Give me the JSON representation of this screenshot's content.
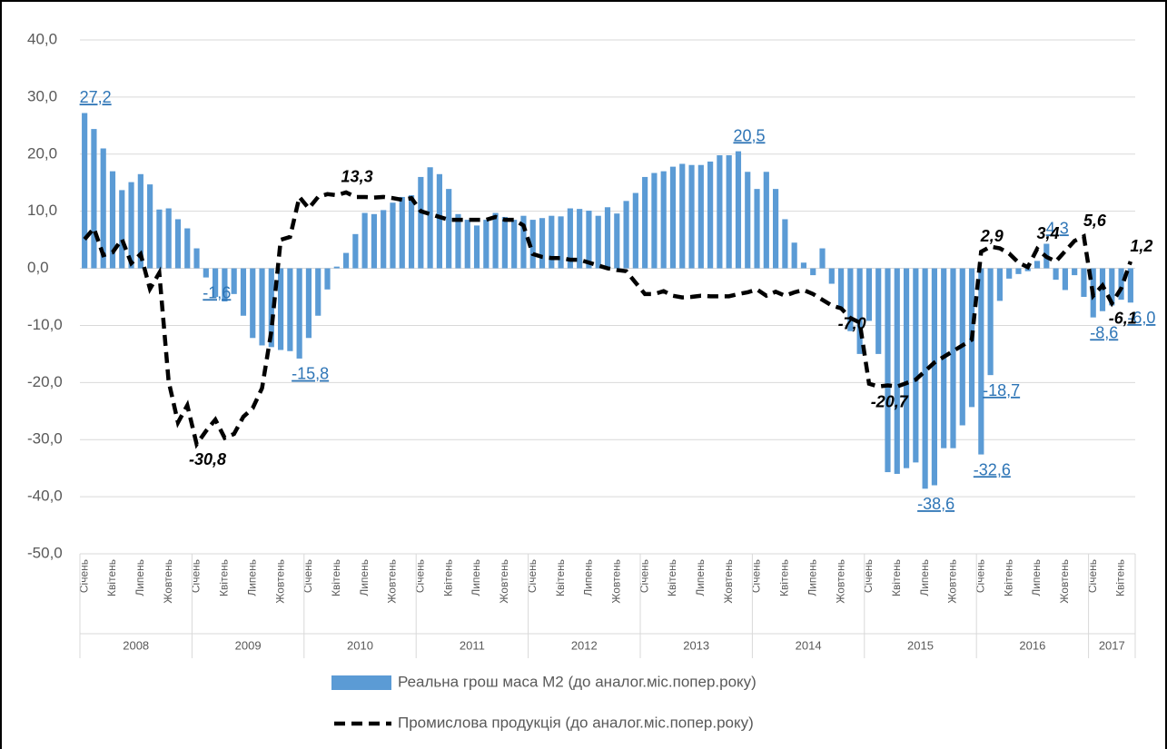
{
  "chart_data": {
    "type": "bar_line",
    "categories": [
      "Січень",
      null,
      null,
      "Квітень",
      null,
      null,
      "Липень",
      null,
      null,
      "Жовтень",
      null,
      null,
      "Січень",
      null,
      null,
      "Квітень",
      null,
      null,
      "Липень",
      null,
      null,
      "Жовтень",
      null,
      null,
      "Січень",
      null,
      null,
      "Квітень",
      null,
      null,
      "Липень",
      null,
      null,
      "Жовтень",
      null,
      null,
      "Січень",
      null,
      null,
      "Квітень",
      null,
      null,
      "Липень",
      null,
      null,
      "Жовтень",
      null,
      null,
      "Січень",
      null,
      null,
      "Квітень",
      null,
      null,
      "Липень",
      null,
      null,
      "Жовтень",
      null,
      null,
      "Січень",
      null,
      null,
      "Квітень",
      null,
      null,
      "Липень",
      null,
      null,
      "Жовтень",
      null,
      null,
      "Січень",
      null,
      null,
      "Квітень",
      null,
      null,
      "Липень",
      null,
      null,
      "Жовтень",
      null,
      null,
      "Січень",
      null,
      null,
      "Квітень",
      null,
      null,
      "Липень",
      null,
      null,
      "Жовтень",
      null,
      null,
      "Січень",
      null,
      null,
      "Квітень",
      null,
      null,
      "Липень",
      null,
      null,
      "Жовтень",
      null,
      null,
      "Січень",
      null,
      null,
      "Квітень",
      null
    ],
    "groups": [
      "2008",
      "2009",
      "2010",
      "2011",
      "2012",
      "2013",
      "2014",
      "2015",
      "2016",
      "2017"
    ],
    "series": [
      {
        "name": "Реальна грош маса М2 (до аналог.міс.попер.року)",
        "type": "bar",
        "color": "#5b9bd5",
        "label_color": "#2e75b6",
        "values": [
          27.2,
          24.4,
          21,
          17,
          13.7,
          15.1,
          16.5,
          14.7,
          10.3,
          10.5,
          8.6,
          7,
          3.5,
          -1.6,
          -5,
          -5.8,
          -4.5,
          -8.3,
          -12.2,
          -13.5,
          -13.8,
          -14.3,
          -14.5,
          -15.8,
          -12.2,
          -8.3,
          -3.7,
          0.3,
          2.7,
          6,
          9.7,
          9.5,
          10.2,
          11.5,
          12.5,
          12.8,
          16,
          17.7,
          16.5,
          13.9,
          9.5,
          8.5,
          7.5,
          8.5,
          9.7,
          9,
          8.5,
          9.2,
          8.5,
          8.8,
          9.2,
          9.1,
          10.5,
          10.4,
          10.1,
          9.2,
          10.7,
          9.6,
          11.8,
          13.2,
          16,
          16.7,
          17,
          17.8,
          18.3,
          18.1,
          18.1,
          18.7,
          19.8,
          19.8,
          20.5,
          16.9,
          13.9,
          16.9,
          13.9,
          8.6,
          4.5,
          1,
          -1.2,
          3.5,
          -2.7,
          -7,
          -11,
          -15,
          -9.2,
          -15,
          -35.7,
          -36,
          -35,
          -34,
          -38.6,
          -38,
          -31.5,
          -31.5,
          -27.5,
          -24.3,
          -32.6,
          -18.7,
          -5.7,
          -1.8,
          -1,
          -0.5,
          1.3,
          4.3,
          -2,
          -3.8,
          -1.2,
          -5,
          -8.6,
          -7.5,
          -6.5,
          -5.5,
          -6
        ],
        "value_labels": [
          "27,2",
          null,
          null,
          null,
          null,
          null,
          null,
          null,
          null,
          null,
          null,
          null,
          null,
          "-1,6",
          null,
          null,
          null,
          null,
          null,
          null,
          null,
          null,
          null,
          "-15,8",
          null,
          null,
          null,
          null,
          null,
          null,
          null,
          null,
          null,
          null,
          null,
          null,
          null,
          null,
          null,
          null,
          null,
          null,
          null,
          null,
          null,
          null,
          null,
          null,
          null,
          null,
          null,
          null,
          null,
          null,
          null,
          null,
          null,
          null,
          null,
          null,
          null,
          null,
          null,
          null,
          null,
          null,
          null,
          null,
          null,
          null,
          "20,5",
          null,
          null,
          null,
          null,
          null,
          null,
          null,
          null,
          null,
          null,
          null,
          null,
          null,
          null,
          null,
          null,
          null,
          null,
          null,
          "-38,6",
          null,
          null,
          null,
          null,
          null,
          "-32,6",
          "-18,7",
          null,
          null,
          null,
          null,
          null,
          "4,3",
          null,
          null,
          null,
          null,
          "-8,6",
          null,
          null,
          null,
          "-6,0"
        ]
      },
      {
        "name": "Промислова продукція (до аналог.міс.попер.року)",
        "type": "line",
        "color": "#000000",
        "dashed": true,
        "values": [
          5.1,
          7,
          2.3,
          2.8,
          5.1,
          0.9,
          2.5,
          -3.6,
          -0.8,
          -19.8,
          -27,
          -24,
          -30.8,
          -28.5,
          -26.5,
          -29.7,
          -29,
          -26,
          -24.5,
          -21,
          -11,
          5,
          5.5,
          12.5,
          10.5,
          12.5,
          13,
          12.8,
          13.3,
          12.5,
          12.5,
          12.4,
          12.5,
          12.3,
          12,
          12.3,
          10,
          9.5,
          9,
          8.5,
          8.5,
          8.5,
          8.5,
          8.5,
          9,
          8.5,
          8.5,
          7.5,
          2.5,
          2,
          1.8,
          1.8,
          1.5,
          1.5,
          1,
          0.5,
          0,
          -0.3,
          -0.5,
          -2.5,
          -4.5,
          -4.5,
          -4,
          -4.8,
          -5.1,
          -5,
          -4.8,
          -4.9,
          -4.9,
          -4.9,
          -4.5,
          -4.2,
          -3.7,
          -4.8,
          -4.1,
          -4.8,
          -4.2,
          -3.8,
          -4.5,
          -5.5,
          -6.5,
          -7,
          -8.7,
          -9.5,
          -20.2,
          -20.7,
          -20.5,
          -20.7,
          -20.1,
          -19.5,
          -18,
          -16.5,
          -15.5,
          -14.5,
          -13.5,
          -12.5,
          2.9,
          3.8,
          3.5,
          2.6,
          1,
          0.2,
          3.4,
          2,
          1.2,
          3,
          4.8,
          5.6,
          -4.8,
          -3,
          -6.1,
          -3.5,
          1.2
        ],
        "value_labels": [
          null,
          null,
          null,
          null,
          null,
          null,
          null,
          null,
          null,
          null,
          null,
          null,
          "-30,8",
          null,
          null,
          null,
          null,
          null,
          null,
          null,
          null,
          null,
          null,
          null,
          null,
          null,
          null,
          null,
          "13,3",
          null,
          null,
          null,
          null,
          null,
          null,
          null,
          null,
          null,
          null,
          null,
          null,
          null,
          null,
          null,
          null,
          null,
          null,
          null,
          null,
          null,
          null,
          null,
          null,
          null,
          null,
          null,
          null,
          null,
          null,
          null,
          null,
          null,
          null,
          null,
          null,
          null,
          null,
          null,
          null,
          null,
          null,
          null,
          null,
          null,
          null,
          null,
          null,
          null,
          null,
          null,
          null,
          "-7,0",
          null,
          null,
          null,
          "-20,7",
          null,
          null,
          null,
          null,
          null,
          null,
          null,
          null,
          null,
          null,
          "2,9",
          null,
          null,
          null,
          null,
          null,
          "3,4",
          null,
          null,
          null,
          null,
          "5,6",
          null,
          null,
          "-6,1",
          null,
          "1,2"
        ]
      }
    ],
    "ylim": [
      -50,
      40
    ],
    "yticks": [
      {
        "value": -50,
        "label": "-50,0"
      },
      {
        "value": -40,
        "label": "-40,0"
      },
      {
        "value": -30,
        "label": "-30,0"
      },
      {
        "value": -20,
        "label": "-20,0"
      },
      {
        "value": -10,
        "label": "-10,0"
      },
      {
        "value": 0,
        "label": "0,0"
      },
      {
        "value": 10,
        "label": "10,0"
      },
      {
        "value": 20,
        "label": "20,0"
      },
      {
        "value": 30,
        "label": "30,0"
      },
      {
        "value": 40,
        "label": "40,0"
      }
    ],
    "grid": true,
    "legend": "bottom"
  }
}
